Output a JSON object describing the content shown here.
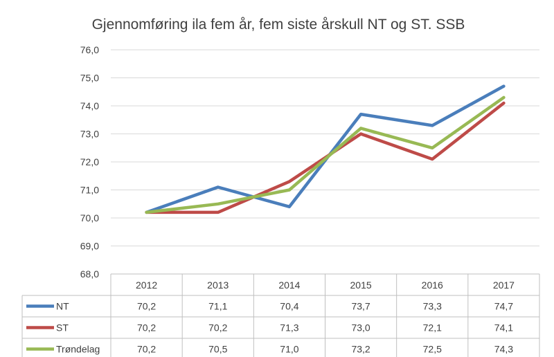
{
  "chart_data": {
    "type": "line",
    "title": "Gjennomføring ila fem år, fem siste årskull NT og ST. SSB",
    "categories": [
      "2012",
      "2013",
      "2014",
      "2015",
      "2016",
      "2017"
    ],
    "ylim": [
      68.0,
      76.0
    ],
    "yticks": [
      "68,0",
      "69,0",
      "70,0",
      "71,0",
      "72,0",
      "73,0",
      "74,0",
      "75,0",
      "76,0"
    ],
    "grid": true,
    "legend": "data-table-left",
    "series": [
      {
        "name": "NT",
        "color": "#4a7ebb",
        "values": [
          70.2,
          71.1,
          70.4,
          73.7,
          73.3,
          74.7
        ],
        "labels": [
          "70,2",
          "71,1",
          "70,4",
          "73,7",
          "73,3",
          "74,7"
        ]
      },
      {
        "name": "ST",
        "color": "#be4b48",
        "values": [
          70.2,
          70.2,
          71.3,
          73.0,
          72.1,
          74.1
        ],
        "labels": [
          "70,2",
          "70,2",
          "71,3",
          "73,0",
          "72,1",
          "74,1"
        ]
      },
      {
        "name": "Trøndelag",
        "color": "#98b954",
        "values": [
          70.2,
          70.5,
          71.0,
          73.2,
          72.5,
          74.3
        ],
        "labels": [
          "70,2",
          "70,5",
          "71,0",
          "73,2",
          "72,5",
          "74,3"
        ]
      }
    ]
  }
}
